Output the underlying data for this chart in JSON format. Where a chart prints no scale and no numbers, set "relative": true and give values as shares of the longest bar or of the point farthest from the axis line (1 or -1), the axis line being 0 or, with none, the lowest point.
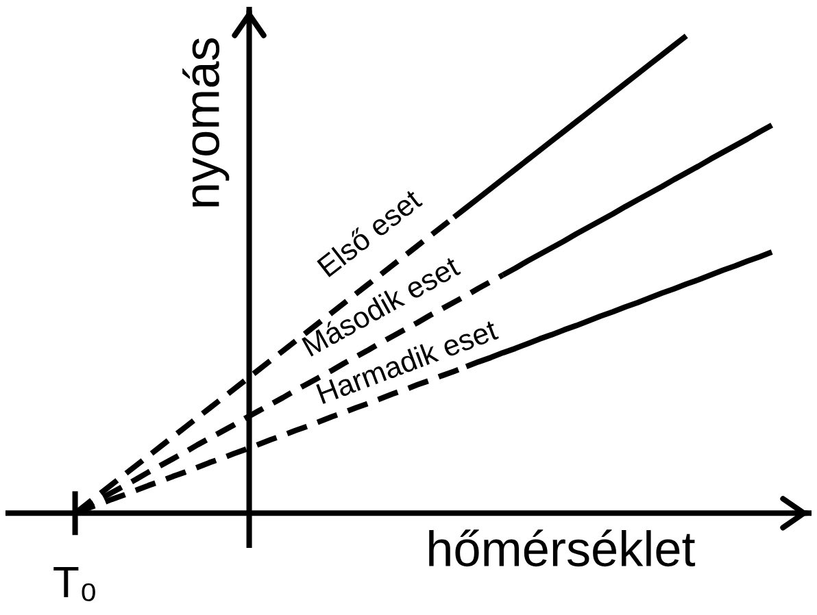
{
  "chart_data": {
    "type": "line",
    "relative": true,
    "xlabel": "hőmérséklet",
    "ylabel": "nyomás",
    "annotations": [
      "T₀"
    ],
    "categories": [
      null,
      null,
      null,
      null,
      null,
      null,
      null,
      null,
      null,
      null,
      null,
      null,
      null,
      null,
      null,
      null,
      null,
      null,
      null,
      null,
      null,
      null,
      null,
      null,
      null,
      null,
      null,
      null,
      null,
      null,
      null,
      null,
      null,
      null,
      null,
      null,
      null,
      null,
      null,
      null,
      null,
      null,
      null,
      null,
      null,
      null,
      null,
      null,
      null,
      null,
      null,
      null,
      null,
      null,
      null,
      null,
      null,
      null
    ],
    "series": [
      {
        "name": "Első eset",
        "color": "#000000",
        "line_style": "dashed",
        "values": [
          0,
          0.02,
          0.04,
          0.06,
          0.08,
          0.1,
          0.12,
          0.14,
          0.16,
          0.18,
          0.2,
          0.22,
          0.24,
          0.26,
          0.28,
          0.3,
          0.32,
          0.34,
          0.36,
          0.38,
          0.4,
          0.42,
          0.44,
          0.46,
          0.48,
          0.5,
          0.52,
          0.54,
          0.56,
          0.58,
          0.6,
          0.62,
          null,
          null,
          null,
          null,
          null,
          null,
          null,
          null,
          null,
          null,
          null,
          null,
          null,
          null,
          null,
          null,
          null,
          null,
          null,
          null,
          null,
          null,
          null,
          null,
          null,
          null
        ]
      },
      {
        "color": "#000000",
        "line_style": "solid",
        "values": [
          null,
          null,
          null,
          null,
          null,
          null,
          null,
          null,
          null,
          null,
          null,
          null,
          null,
          null,
          null,
          null,
          null,
          null,
          null,
          null,
          null,
          null,
          null,
          null,
          null,
          null,
          null,
          null,
          null,
          null,
          null,
          0.62,
          0.64,
          0.66,
          0.68,
          0.7,
          0.72,
          0.74,
          0.76,
          0.78,
          0.8,
          0.82,
          0.84,
          0.86,
          0.88,
          0.9,
          0.92,
          0.94,
          0.96,
          0.98,
          1,
          null,
          null,
          null,
          null,
          null,
          null,
          null
        ]
      },
      {
        "name": "Második eset",
        "color": "#000000",
        "line_style": "dashed",
        "values": [
          0,
          0.014,
          0.029,
          0.043,
          0.057,
          0.071,
          0.086,
          0.1,
          0.114,
          0.128,
          0.143,
          0.157,
          0.171,
          0.185,
          0.2,
          0.214,
          0.228,
          0.242,
          0.257,
          0.271,
          0.285,
          0.299,
          0.314,
          0.328,
          0.342,
          0.357,
          0.371,
          0.385,
          0.399,
          0.414,
          0.428,
          0.442,
          0.456,
          0.471,
          0.485,
          0.499,
          null,
          null,
          null,
          null,
          null,
          null,
          null,
          null,
          null,
          null,
          null,
          null,
          null,
          null,
          null,
          null,
          null,
          null,
          null,
          null,
          null,
          null
        ]
      },
      {
        "color": "#000000",
        "line_style": "solid",
        "values": [
          null,
          null,
          null,
          null,
          null,
          null,
          null,
          null,
          null,
          null,
          null,
          null,
          null,
          null,
          null,
          null,
          null,
          null,
          null,
          null,
          null,
          null,
          null,
          null,
          null,
          null,
          null,
          null,
          null,
          null,
          null,
          null,
          null,
          null,
          null,
          0.499,
          0.513,
          0.528,
          0.542,
          0.556,
          0.57,
          0.585,
          0.599,
          0.613,
          0.627,
          0.642,
          0.656,
          0.67,
          0.684,
          0.699,
          0.713,
          0.727,
          0.742,
          0.756,
          0.77,
          0.784,
          0.799,
          0.813
        ]
      },
      {
        "name": "Harmadik eset",
        "color": "#000000",
        "line_style": "dashed",
        "values": [
          0,
          0.01,
          0.019,
          0.029,
          0.038,
          0.048,
          0.058,
          0.067,
          0.077,
          0.086,
          0.096,
          0.106,
          0.115,
          0.125,
          0.134,
          0.144,
          0.154,
          0.163,
          0.173,
          0.182,
          0.192,
          0.202,
          0.211,
          0.221,
          0.23,
          0.24,
          0.25,
          0.259,
          0.269,
          0.278,
          0.288,
          0.297,
          0.307,
          null,
          null,
          null,
          null,
          null,
          null,
          null,
          null,
          null,
          null,
          null,
          null,
          null,
          null,
          null,
          null,
          null,
          null,
          null,
          null,
          null,
          null,
          null,
          null,
          null
        ]
      },
      {
        "color": "#000000",
        "line_style": "solid",
        "values": [
          null,
          null,
          null,
          null,
          null,
          null,
          null,
          null,
          null,
          null,
          null,
          null,
          null,
          null,
          null,
          null,
          null,
          null,
          null,
          null,
          null,
          null,
          null,
          null,
          null,
          null,
          null,
          null,
          null,
          null,
          null,
          null,
          0.307,
          0.317,
          0.326,
          0.336,
          0.345,
          0.355,
          0.365,
          0.374,
          0.384,
          0.393,
          0.403,
          0.413,
          0.422,
          0.432,
          0.441,
          0.451,
          0.461,
          0.47,
          0.48,
          0.489,
          0.499,
          0.509,
          0.518,
          0.528,
          0.537,
          0.547
        ]
      }
    ]
  }
}
